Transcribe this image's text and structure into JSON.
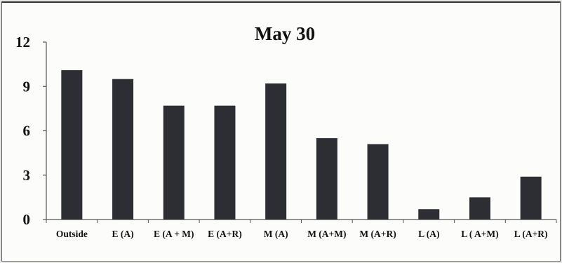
{
  "chart_data": {
    "type": "bar",
    "title": "May 30",
    "xlabel": "",
    "ylabel": "",
    "ylim": [
      0,
      12
    ],
    "yticks": [
      0,
      3,
      6,
      9,
      12
    ],
    "grid": false,
    "legend": "none",
    "categories": [
      "Outside",
      "E (A)",
      "E (A + M)",
      "E (A+R)",
      "M (A)",
      "M (A+M)",
      "M (A+R)",
      "L (A)",
      "L ( A+M)",
      "L (A+R)"
    ],
    "series": [
      {
        "values": [
          10.1,
          9.5,
          7.7,
          7.7,
          9.2,
          5.5,
          5.1,
          0.7,
          1.5,
          2.9
        ]
      }
    ],
    "colors": {
      "bar": "#2c2e34",
      "axis": "#555555",
      "text": "#111111"
    }
  }
}
